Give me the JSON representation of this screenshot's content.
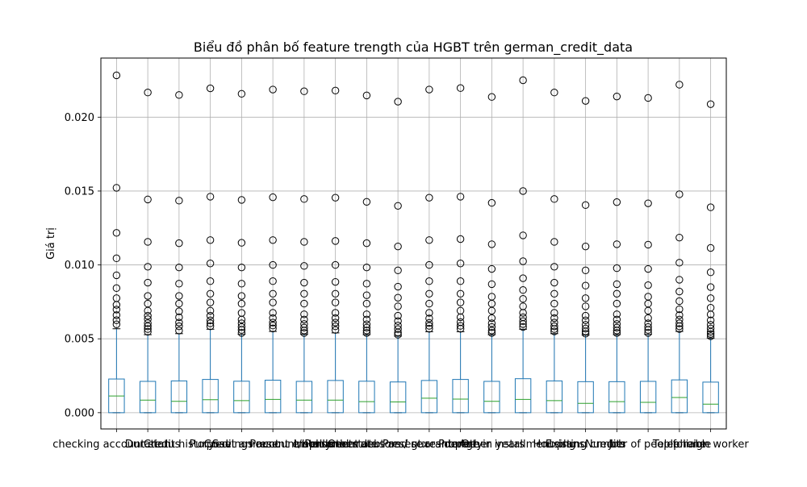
{
  "chart_data": {
    "type": "box",
    "title": "Biểu đồ phân bố feature trength của HGBT trên german_credit_data",
    "xlabel": "",
    "ylabel": "Giá trị",
    "ylim": [
      -0.0011,
      0.024
    ],
    "yticks": [
      0.0,
      0.005,
      0.01,
      0.015,
      0.02
    ],
    "ytick_labels": [
      "0.000",
      "0.005",
      "0.010",
      "0.015",
      "0.020"
    ],
    "grid": true,
    "box_color": "#1f77b4",
    "median_color": "#2ca02c",
    "whisker_color": "#1f77b4",
    "categories": [
      "checking account status",
      "Duration",
      "Credit history",
      "Purpose",
      "Credit amount",
      "Savings account/bonds",
      "Present employment",
      "Installment rate",
      "Personal status and sex",
      "Other debtors / guarantors",
      "Present residence",
      "Property",
      "Age in years",
      "Other installment plans",
      "Housing",
      "Existing credits",
      "Job",
      "Number of people liable",
      "Telephone",
      "foreign worker"
    ],
    "x_tick_labels_visible": [
      "checking account status",
      "Duration",
      "Credit history",
      "Purpose",
      "Credit amount",
      "Savings account/bonds",
      "Present employment",
      "Installment rate",
      "Personal status and sex",
      "Other debtors / guarantors",
      "Present residence",
      "Property",
      "Age in years",
      "Other installment plans",
      "Housing",
      "Existing credits",
      "Job",
      "Number of people liable",
      "Telephone",
      "foreign worker"
    ],
    "series": [
      {
        "q1": 0.0,
        "median": 0.00113,
        "q3": 0.00228,
        "whislo": 0.0,
        "whishi": 0.00568,
        "fliers": [
          0.00598,
          0.00626,
          0.0066,
          0.00698,
          0.0073,
          0.00775,
          0.00843,
          0.0093,
          0.01045,
          0.01217,
          0.01522,
          0.02283
        ]
      },
      {
        "q1": 0.0,
        "median": 0.00085,
        "q3": 0.00212,
        "whislo": 0.0,
        "whishi": 0.00528,
        "fliers": [
          0.00548,
          0.00566,
          0.00585,
          0.00606,
          0.00633,
          0.00656,
          0.0069,
          0.00738,
          0.0079,
          0.0088,
          0.00988,
          0.01156,
          0.01443,
          0.02167
        ]
      },
      {
        "q1": 0.0,
        "median": 0.00077,
        "q3": 0.00215,
        "whislo": 0.0,
        "whishi": 0.00535,
        "fliers": [
          0.00556,
          0.00585,
          0.0061,
          0.00646,
          0.00686,
          0.00738,
          0.0079,
          0.00873,
          0.00983,
          0.01147,
          0.01435,
          0.0215
        ]
      },
      {
        "q1": 0.0,
        "median": 0.00088,
        "q3": 0.00225,
        "whislo": 0.0,
        "whishi": 0.00565,
        "fliers": [
          0.00585,
          0.00605,
          0.00625,
          0.00656,
          0.0069,
          0.00746,
          0.00805,
          0.0089,
          0.0101,
          0.01168,
          0.01462,
          0.02195
        ]
      },
      {
        "q1": 0.0,
        "median": 0.00082,
        "q3": 0.00213,
        "whislo": 0.0,
        "whishi": 0.0053,
        "fliers": [
          0.0054,
          0.0056,
          0.0058,
          0.00605,
          0.0063,
          0.00675,
          0.00738,
          0.0079,
          0.00873,
          0.00983,
          0.0115,
          0.0144,
          0.02158
        ]
      },
      {
        "q1": 0.0,
        "median": 0.0009,
        "q3": 0.0022,
        "whislo": 0.0,
        "whishi": 0.0055,
        "fliers": [
          0.0057,
          0.0059,
          0.0061,
          0.0064,
          0.00676,
          0.00746,
          0.00805,
          0.0089,
          0.01,
          0.01168,
          0.01458,
          0.02187
        ]
      },
      {
        "q1": 0.0,
        "median": 0.00085,
        "q3": 0.00212,
        "whislo": 0.0,
        "whishi": 0.0053,
        "fliers": [
          0.0054,
          0.00556,
          0.00576,
          0.006,
          0.0063,
          0.00666,
          0.00738,
          0.00805,
          0.0088,
          0.00993,
          0.01156,
          0.01446,
          0.02175
        ]
      },
      {
        "q1": 0.0,
        "median": 0.00085,
        "q3": 0.00218,
        "whislo": 0.0,
        "whishi": 0.0054,
        "fliers": [
          0.0056,
          0.00585,
          0.0061,
          0.0064,
          0.00676,
          0.00746,
          0.00805,
          0.00885,
          0.01,
          0.01162,
          0.01455,
          0.0218
        ]
      },
      {
        "q1": 0.0,
        "median": 0.00075,
        "q3": 0.00213,
        "whislo": 0.0,
        "whishi": 0.00528,
        "fliers": [
          0.0054,
          0.00556,
          0.00576,
          0.00598,
          0.0063,
          0.00666,
          0.00738,
          0.00795,
          0.00873,
          0.00983,
          0.01147,
          0.01427,
          0.02147
        ]
      },
      {
        "q1": 0.0,
        "median": 0.00073,
        "q3": 0.00208,
        "whislo": 0.0,
        "whishi": 0.00518,
        "fliers": [
          0.00528,
          0.00543,
          0.00566,
          0.0059,
          0.0062,
          0.00656,
          0.0072,
          0.00778,
          0.00853,
          0.00963,
          0.01125,
          0.014,
          0.02105
        ]
      },
      {
        "q1": 0.0,
        "median": 0.00098,
        "q3": 0.00218,
        "whislo": 0.0,
        "whishi": 0.00548,
        "fliers": [
          0.00568,
          0.00588,
          0.00608,
          0.00638,
          0.00676,
          0.00738,
          0.00805,
          0.0089,
          0.01,
          0.01168,
          0.01455,
          0.02187
        ]
      },
      {
        "q1": 0.0,
        "median": 0.00092,
        "q3": 0.00225,
        "whislo": 0.0,
        "whishi": 0.00548,
        "fliers": [
          0.00568,
          0.00588,
          0.00613,
          0.00646,
          0.0069,
          0.00746,
          0.00805,
          0.0089,
          0.0101,
          0.01175,
          0.01462,
          0.02197
        ]
      },
      {
        "q1": 0.0,
        "median": 0.00077,
        "q3": 0.00212,
        "whislo": 0.0,
        "whishi": 0.00528,
        "fliers": [
          0.0054,
          0.00556,
          0.0058,
          0.00605,
          0.0064,
          0.0069,
          0.00738,
          0.00785,
          0.0087,
          0.00973,
          0.0114,
          0.0142,
          0.02137
        ]
      },
      {
        "q1": 0.0,
        "median": 0.0009,
        "q3": 0.0023,
        "whislo": 0.0,
        "whishi": 0.00565,
        "fliers": [
          0.0058,
          0.006,
          0.0062,
          0.00646,
          0.00676,
          0.0072,
          0.0077,
          0.0083,
          0.0091,
          0.01025,
          0.012,
          0.015,
          0.0225
        ]
      },
      {
        "q1": 0.0,
        "median": 0.00082,
        "q3": 0.00215,
        "whislo": 0.0,
        "whishi": 0.00535,
        "fliers": [
          0.0055,
          0.00566,
          0.00585,
          0.0061,
          0.0064,
          0.00676,
          0.00738,
          0.00805,
          0.0088,
          0.00988,
          0.01156,
          0.01446,
          0.02167
        ]
      },
      {
        "q1": 0.0,
        "median": 0.00063,
        "q3": 0.0021,
        "whislo": 0.0,
        "whishi": 0.00525,
        "fliers": [
          0.00535,
          0.0055,
          0.0057,
          0.00595,
          0.00625,
          0.00656,
          0.0072,
          0.00775,
          0.0086,
          0.00963,
          0.01125,
          0.01405,
          0.0211
        ]
      },
      {
        "q1": 0.0,
        "median": 0.00075,
        "q3": 0.0021,
        "whislo": 0.0,
        "whishi": 0.00528,
        "fliers": [
          0.0054,
          0.00556,
          0.00576,
          0.006,
          0.0063,
          0.00666,
          0.00738,
          0.00805,
          0.0087,
          0.00978,
          0.0114,
          0.01425,
          0.0214
        ]
      },
      {
        "q1": 0.0,
        "median": 0.0007,
        "q3": 0.00212,
        "whislo": 0.0,
        "whishi": 0.0053,
        "fliers": [
          0.0054,
          0.0056,
          0.0058,
          0.00605,
          0.0064,
          0.0069,
          0.00738,
          0.00785,
          0.00863,
          0.00973,
          0.01137,
          0.01417,
          0.0213
        ]
      },
      {
        "q1": 0.0,
        "median": 0.00103,
        "q3": 0.00222,
        "whislo": 0.0,
        "whishi": 0.0055,
        "fliers": [
          0.00566,
          0.00585,
          0.00605,
          0.0063,
          0.0066,
          0.007,
          0.00755,
          0.0082,
          0.009,
          0.01015,
          0.01185,
          0.01478,
          0.0222
        ]
      },
      {
        "q1": 0.0,
        "median": 0.00058,
        "q3": 0.00207,
        "whislo": 0.0,
        "whishi": 0.00505,
        "fliers": [
          0.00518,
          0.00533,
          0.00548,
          0.0057,
          0.00595,
          0.00625,
          0.00665,
          0.0071,
          0.00775,
          0.0085,
          0.0095,
          0.01115,
          0.0139,
          0.02088
        ]
      }
    ]
  }
}
